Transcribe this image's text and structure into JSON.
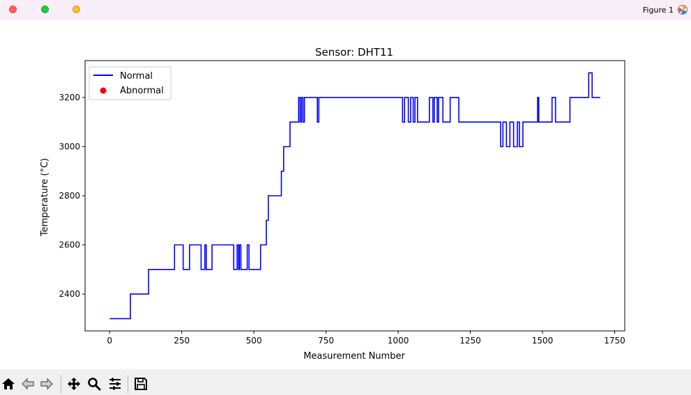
{
  "window": {
    "title": "Figure 1",
    "buttons": [
      "close",
      "minimize",
      "maximize"
    ],
    "button_colors": {
      "close": "#ff5f57",
      "minimize": "#28c840",
      "maximize": "#febc2e"
    }
  },
  "toolbar": {
    "tools": [
      "home-icon",
      "back-icon",
      "forward-icon",
      "pan-icon",
      "zoom-icon",
      "configure-subplots-icon",
      "save-icon"
    ]
  },
  "chart_data": {
    "type": "line",
    "title": "Sensor: DHT11",
    "xlabel": "Measurement Number",
    "ylabel": "Temperature (°C)",
    "xlim": [
      -85,
      1785
    ],
    "ylim": [
      2250,
      3350
    ],
    "xticks": [
      0,
      250,
      500,
      750,
      1000,
      1250,
      1500,
      1750
    ],
    "xtick_labels": [
      "0",
      "250",
      "500",
      "750",
      "1000",
      "1250",
      "1500",
      "1750"
    ],
    "yticks": [
      2400,
      2600,
      2800,
      3000,
      3200
    ],
    "ytick_labels": [
      "2400",
      "2600",
      "2800",
      "3000",
      "3200"
    ],
    "grid": false,
    "legend": {
      "placement": "top-left",
      "entries": [
        {
          "label": "Normal",
          "marker": "line",
          "color": "#0000ff"
        },
        {
          "label": "Abnormal",
          "marker": "dot",
          "color": "#ff0000"
        }
      ]
    },
    "series": [
      {
        "name": "Normal",
        "color": "#0000ff",
        "style": "step",
        "x": [
          0,
          72,
          72,
          135,
          135,
          225,
          225,
          255,
          255,
          277,
          277,
          317,
          317,
          330,
          330,
          335,
          335,
          355,
          355,
          430,
          430,
          442,
          442,
          447,
          447,
          450,
          450,
          455,
          455,
          460,
          460,
          477,
          477,
          483,
          483,
          523,
          523,
          543,
          543,
          550,
          550,
          595,
          595,
          603,
          603,
          625,
          625,
          655,
          655,
          660,
          660,
          665,
          665,
          670,
          670,
          675,
          675,
          695,
          695,
          720,
          720,
          725,
          725,
          1015,
          1015,
          1022,
          1022,
          1035,
          1035,
          1043,
          1043,
          1052,
          1052,
          1058,
          1058,
          1067,
          1067,
          1108,
          1108,
          1120,
          1120,
          1125,
          1125,
          1135,
          1135,
          1140,
          1140,
          1155,
          1155,
          1180,
          1180,
          1210,
          1210,
          1355,
          1355,
          1363,
          1363,
          1375,
          1375,
          1387,
          1387,
          1400,
          1400,
          1413,
          1413,
          1420,
          1420,
          1432,
          1432,
          1483,
          1483,
          1487,
          1487,
          1533,
          1533,
          1545,
          1545,
          1595,
          1595,
          1660,
          1660,
          1672,
          1672,
          1700
        ],
        "y": [
          2300,
          2300,
          2400,
          2400,
          2500,
          2500,
          2600,
          2600,
          2500,
          2500,
          2600,
          2600,
          2500,
          2500,
          2600,
          2600,
          2500,
          2500,
          2600,
          2600,
          2500,
          2500,
          2600,
          2600,
          2500,
          2500,
          2600,
          2600,
          2500,
          2500,
          2500,
          2500,
          2600,
          2600,
          2500,
          2500,
          2600,
          2600,
          2700,
          2700,
          2800,
          2800,
          2900,
          2900,
          3000,
          3000,
          3100,
          3100,
          3200,
          3200,
          3100,
          3100,
          3200,
          3200,
          3100,
          3100,
          3200,
          3200,
          3200,
          3200,
          3100,
          3100,
          3200,
          3200,
          3100,
          3100,
          3200,
          3200,
          3100,
          3100,
          3200,
          3200,
          3100,
          3100,
          3200,
          3200,
          3100,
          3100,
          3200,
          3200,
          3100,
          3100,
          3200,
          3200,
          3100,
          3100,
          3200,
          3200,
          3100,
          3100,
          3200,
          3200,
          3100,
          3100,
          3000,
          3000,
          3100,
          3100,
          3000,
          3000,
          3100,
          3100,
          3000,
          3000,
          3100,
          3100,
          3000,
          3000,
          3100,
          3100,
          3200,
          3200,
          3100,
          3100,
          3200,
          3200,
          3100,
          3100,
          3200,
          3200,
          3300,
          3300,
          3200,
          3200
        ]
      },
      {
        "name": "Abnormal",
        "color": "#ff0000",
        "style": "scatter",
        "x": [],
        "y": []
      }
    ]
  }
}
